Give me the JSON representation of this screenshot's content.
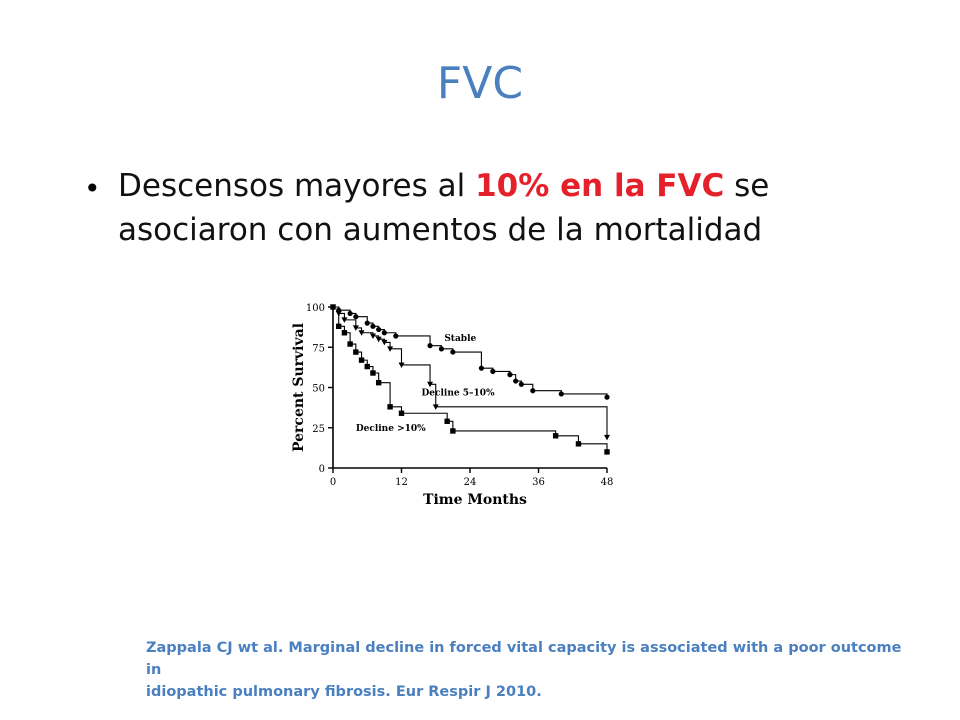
{
  "slide": {
    "title": "FVC",
    "bullet": {
      "before": "Descensos mayores al ",
      "highlight": "10% en la FVC",
      "after": " se asociaron con aumentos de la mortalidad"
    },
    "citation_line1": "Zappala CJ wt al. Marginal decline in forced vital capacity is associated with a poor outcome in",
    "citation_line2": "idiopathic pulmonary fibrosis. Eur Respir J 2010."
  },
  "colors": {
    "title": "#4a7fc0",
    "highlight": "#e4212b",
    "citation": "#4a7fc0"
  },
  "chart_data": {
    "type": "line",
    "xlabel": "Time Months",
    "ylabel": "Percent Survival",
    "xlim": [
      0,
      48
    ],
    "ylim": [
      0,
      100
    ],
    "xticks": [
      0,
      12,
      24,
      36,
      48
    ],
    "yticks": [
      0,
      25,
      50,
      75,
      100
    ],
    "grid": false,
    "series": [
      {
        "name": "Stable",
        "marker": "circle",
        "x": [
          0,
          1,
          3,
          4,
          6,
          7,
          8,
          9,
          11,
          17,
          19,
          21,
          26,
          28,
          31,
          32,
          33,
          35,
          40,
          48
        ],
        "y": [
          100,
          98,
          96,
          94,
          90,
          88,
          86,
          84,
          82,
          76,
          74,
          72,
          62,
          60,
          58,
          54,
          52,
          48,
          46,
          44
        ]
      },
      {
        "name": "Decline 5–10%",
        "marker": "triangle",
        "x": [
          0,
          1,
          2,
          4,
          5,
          7,
          8,
          9,
          10,
          12,
          17,
          18,
          48
        ],
        "y": [
          100,
          96,
          92,
          87,
          84,
          82,
          80,
          78,
          74,
          64,
          52,
          38,
          19
        ]
      },
      {
        "name": "Decline >10%",
        "marker": "square",
        "x": [
          0,
          1,
          2,
          3,
          4,
          5,
          6,
          7,
          8,
          10,
          12,
          20,
          21,
          39,
          43,
          48
        ],
        "y": [
          100,
          88,
          84,
          77,
          72,
          67,
          63,
          59,
          53,
          38,
          34,
          29,
          23,
          20,
          15,
          10
        ]
      }
    ]
  }
}
